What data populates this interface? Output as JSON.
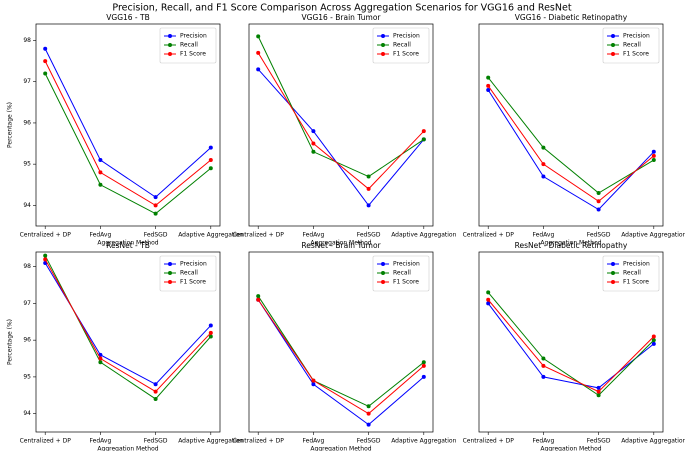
{
  "title": "Precision, Recall, and F1 Score Comparison Across Aggregation Scenarios for VGG16 and ResNet",
  "chart_data": [
    {
      "type": "line",
      "title": "VGG16 - TB",
      "xlabel": "Aggregation Method",
      "ylabel": "Percentage (%)",
      "categories": [
        "Centralized + DP",
        "FedAvg",
        "FedSGD",
        "Adaptive Aggregation"
      ],
      "series": [
        {
          "name": "Precision",
          "color": "#0000ff",
          "values": [
            97.8,
            95.1,
            94.2,
            95.4
          ]
        },
        {
          "name": "Recall",
          "color": "#008000",
          "values": [
            97.2,
            94.5,
            93.8,
            94.9
          ]
        },
        {
          "name": "F1 Score",
          "color": "#ff0000",
          "values": [
            97.5,
            94.8,
            94.0,
            95.1
          ]
        }
      ],
      "ylim": [
        93.5,
        98.4
      ],
      "yticks": [
        94,
        95,
        96,
        97,
        98
      ],
      "legend": "upper right"
    },
    {
      "type": "line",
      "title": "VGG16 - Brain Tumor",
      "xlabel": "Aggregation Method",
      "categories": [
        "Centralized + DP",
        "FedAvg",
        "FedSGD",
        "Adaptive Aggregation"
      ],
      "series": [
        {
          "name": "Precision",
          "color": "#0000ff",
          "values": [
            97.3,
            95.8,
            94.0,
            95.6
          ]
        },
        {
          "name": "Recall",
          "color": "#008000",
          "values": [
            98.1,
            95.3,
            94.7,
            95.6
          ]
        },
        {
          "name": "F1 Score",
          "color": "#ff0000",
          "values": [
            97.7,
            95.5,
            94.4,
            95.8
          ]
        }
      ],
      "ylim": [
        93.5,
        98.4
      ],
      "legend": "upper right"
    },
    {
      "type": "line",
      "title": "VGG16 - Diabetic Retinopathy",
      "xlabel": "Aggregation Method",
      "categories": [
        "Centralized + DP",
        "FedAvg",
        "FedSGD",
        "Adaptive Aggregation"
      ],
      "series": [
        {
          "name": "Precision",
          "color": "#0000ff",
          "values": [
            96.8,
            94.7,
            93.9,
            95.3
          ]
        },
        {
          "name": "Recall",
          "color": "#008000",
          "values": [
            97.1,
            95.4,
            94.3,
            95.1
          ]
        },
        {
          "name": "F1 Score",
          "color": "#ff0000",
          "values": [
            96.9,
            95.0,
            94.1,
            95.2
          ]
        }
      ],
      "ylim": [
        93.5,
        98.4
      ],
      "legend": "upper right"
    },
    {
      "type": "line",
      "title": "ResNet - TB",
      "xlabel": "Aggregation Method",
      "ylabel": "Percentage (%)",
      "categories": [
        "Centralized + DP",
        "FedAvg",
        "FedSGD",
        "Adaptive Aggregation"
      ],
      "series": [
        {
          "name": "Precision",
          "color": "#0000ff",
          "values": [
            98.1,
            95.6,
            94.8,
            96.4
          ]
        },
        {
          "name": "Recall",
          "color": "#008000",
          "values": [
            98.3,
            95.4,
            94.4,
            96.1
          ]
        },
        {
          "name": "F1 Score",
          "color": "#ff0000",
          "values": [
            98.2,
            95.5,
            94.6,
            96.2
          ]
        }
      ],
      "ylim": [
        93.5,
        98.4
      ],
      "yticks": [
        94,
        95,
        96,
        97,
        98
      ],
      "legend": "upper right"
    },
    {
      "type": "line",
      "title": "ResNet - Brain Tumor",
      "xlabel": "Aggregation Method",
      "categories": [
        "Centralized + DP",
        "FedAvg",
        "FedSGD",
        "Adaptive Aggregation"
      ],
      "series": [
        {
          "name": "Precision",
          "color": "#0000ff",
          "values": [
            97.1,
            94.8,
            93.7,
            95.0
          ]
        },
        {
          "name": "Recall",
          "color": "#008000",
          "values": [
            97.2,
            94.9,
            94.2,
            95.4
          ]
        },
        {
          "name": "F1 Score",
          "color": "#ff0000",
          "values": [
            97.1,
            94.9,
            94.0,
            95.3
          ]
        }
      ],
      "ylim": [
        93.5,
        98.4
      ],
      "legend": "upper right"
    },
    {
      "type": "line",
      "title": "ResNet - Diabetic Retinopathy",
      "xlabel": "Aggregation Method",
      "categories": [
        "Centralized + DP",
        "FedAvg",
        "FedSGD",
        "Adaptive Aggregation"
      ],
      "series": [
        {
          "name": "Precision",
          "color": "#0000ff",
          "values": [
            97.0,
            95.0,
            94.7,
            95.9
          ]
        },
        {
          "name": "Recall",
          "color": "#008000",
          "values": [
            97.3,
            95.5,
            94.5,
            96.0
          ]
        },
        {
          "name": "F1 Score",
          "color": "#ff0000",
          "values": [
            97.1,
            95.3,
            94.6,
            96.1
          ]
        }
      ],
      "ylim": [
        93.5,
        98.4
      ],
      "legend": "upper right"
    }
  ]
}
